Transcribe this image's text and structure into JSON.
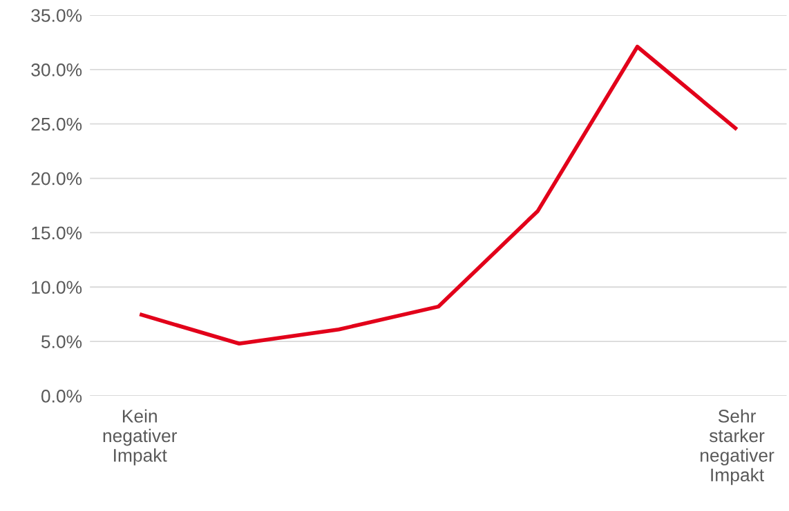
{
  "chart_data": {
    "type": "line",
    "categories": [
      "Kein\nnegativer\nImpakt",
      null,
      null,
      null,
      null,
      null,
      "Sehr\nstarker\nnegativer\nImpakt"
    ],
    "series": [
      {
        "color": "#e2001a",
        "values": [
          7.5,
          4.8,
          6.1,
          8.2,
          17.0,
          32.1,
          24.5
        ]
      }
    ],
    "ylim": [
      0,
      35
    ],
    "yticks": [
      {
        "value": 0,
        "label": "0.0%"
      },
      {
        "value": 5,
        "label": "5.0%"
      },
      {
        "value": 10,
        "label": "10.0%"
      },
      {
        "value": 15,
        "label": "15.0%"
      },
      {
        "value": 20,
        "label": "20.0%"
      },
      {
        "value": 25,
        "label": "25.0%"
      },
      {
        "value": 30,
        "label": "30.0%"
      },
      {
        "value": 35,
        "label": "35.0%"
      }
    ],
    "grid": "y",
    "marker": "none",
    "line_style": "solid"
  }
}
